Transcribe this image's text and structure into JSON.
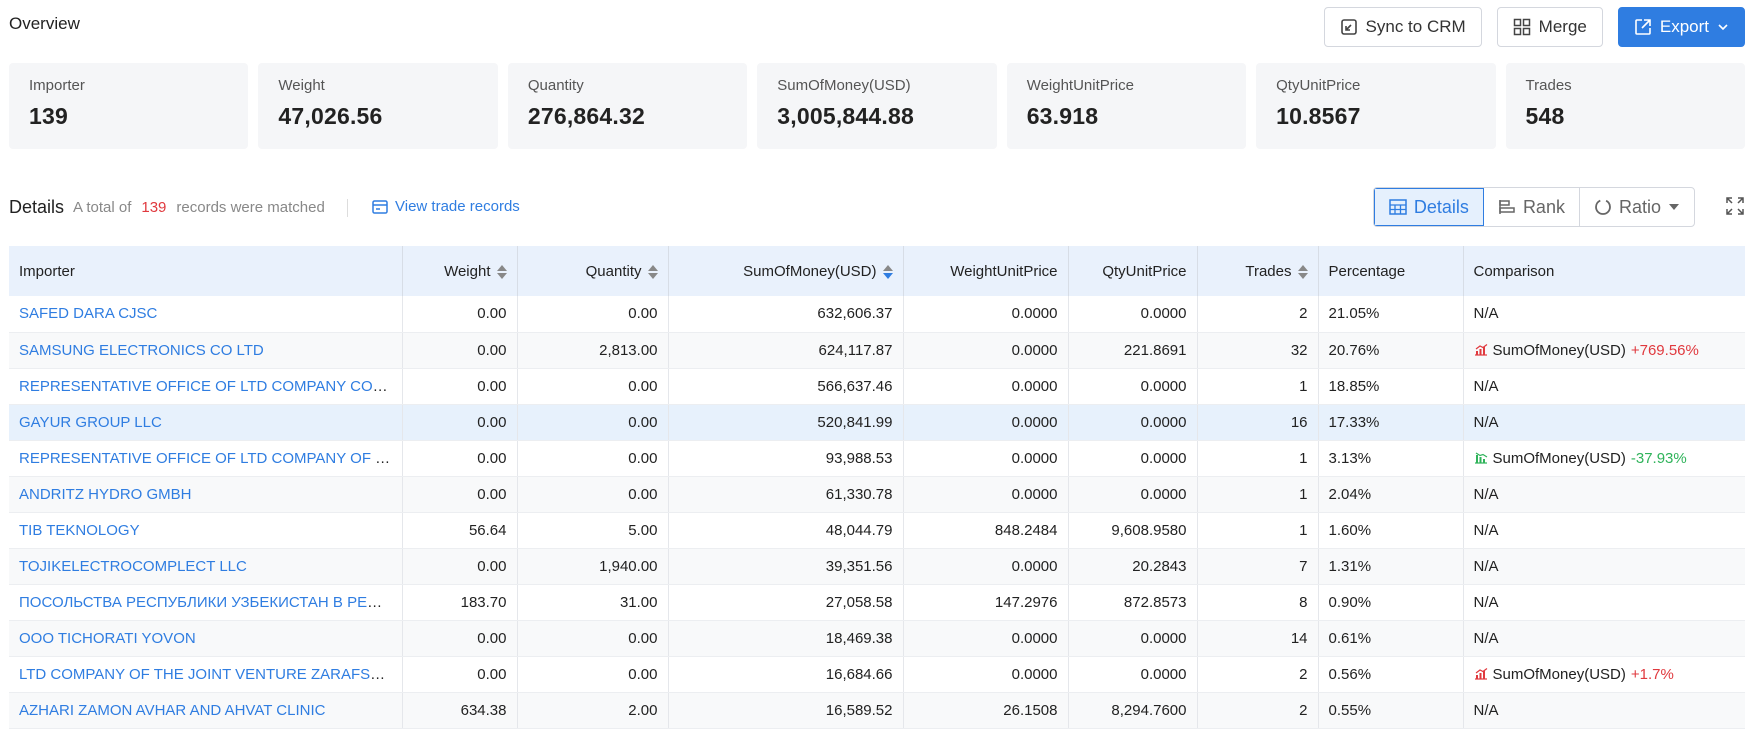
{
  "overview": {
    "title": "Overview",
    "actions": {
      "sync_label": "Sync to CRM",
      "merge_label": "Merge",
      "export_label": "Export"
    }
  },
  "stats": [
    {
      "label": "Importer",
      "value": "139"
    },
    {
      "label": "Weight",
      "value": "47,026.56"
    },
    {
      "label": "Quantity",
      "value": "276,864.32"
    },
    {
      "label": "SumOfMoney(USD)",
      "value": "3,005,844.88"
    },
    {
      "label": "WeightUnitPrice",
      "value": "63.918"
    },
    {
      "label": "QtyUnitPrice",
      "value": "10.8567"
    },
    {
      "label": "Trades",
      "value": "548"
    }
  ],
  "details": {
    "title": "Details",
    "summary_prefix": "A total of",
    "count": "139",
    "summary_suffix": "records were matched",
    "view_link": "View trade records",
    "views": {
      "details": "Details",
      "rank": "Rank",
      "ratio": "Ratio"
    }
  },
  "table": {
    "headers": {
      "importer": "Importer",
      "weight": "Weight",
      "quantity": "Quantity",
      "sum": "SumOfMoney(USD)",
      "wup": "WeightUnitPrice",
      "qup": "QtyUnitPrice",
      "trades": "Trades",
      "percentage": "Percentage",
      "comparison": "Comparison"
    },
    "rows": [
      {
        "importer": "SAFED DARA CJSC",
        "weight": "0.00",
        "quantity": "0.00",
        "sum": "632,606.37",
        "wup": "0.0000",
        "qup": "0.0000",
        "trades": "2",
        "percentage": "21.05%",
        "comparison": "N/A"
      },
      {
        "importer": "SAMSUNG ELECTRONICS CO LTD",
        "weight": "0.00",
        "quantity": "2,813.00",
        "sum": "624,117.87",
        "wup": "0.0000",
        "qup": "221.8691",
        "trades": "32",
        "percentage": "20.76%",
        "comparison": "SumOfMoney(USD)",
        "change": "+769.56%",
        "trend": "up"
      },
      {
        "importer": "REPRESENTATIVE OFFICE OF LTD COMPANY CORPORATION",
        "weight": "0.00",
        "quantity": "0.00",
        "sum": "566,637.46",
        "wup": "0.0000",
        "qup": "0.0000",
        "trades": "1",
        "percentage": "18.85%",
        "comparison": "N/A"
      },
      {
        "importer": "GAYUR GROUP LLC",
        "weight": "0.00",
        "quantity": "0.00",
        "sum": "520,841.99",
        "wup": "0.0000",
        "qup": "0.0000",
        "trades": "16",
        "percentage": "17.33%",
        "comparison": "N/A"
      },
      {
        "importer": "REPRESENTATIVE OFFICE OF LTD COMPANY OF JIANGSU",
        "weight": "0.00",
        "quantity": "0.00",
        "sum": "93,988.53",
        "wup": "0.0000",
        "qup": "0.0000",
        "trades": "1",
        "percentage": "3.13%",
        "comparison": "SumOfMoney(USD)",
        "change": "-37.93%",
        "trend": "down"
      },
      {
        "importer": "ANDRITZ HYDRO GMBH",
        "weight": "0.00",
        "quantity": "0.00",
        "sum": "61,330.78",
        "wup": "0.0000",
        "qup": "0.0000",
        "trades": "1",
        "percentage": "2.04%",
        "comparison": "N/A"
      },
      {
        "importer": "TIB TEKNOLOGY",
        "weight": "56.64",
        "quantity": "5.00",
        "sum": "48,044.79",
        "wup": "848.2484",
        "qup": "9,608.9580",
        "trades": "1",
        "percentage": "1.60%",
        "comparison": "N/A"
      },
      {
        "importer": "TOJIKELECTROCOMPLECT LLC",
        "weight": "0.00",
        "quantity": "1,940.00",
        "sum": "39,351.56",
        "wup": "0.0000",
        "qup": "20.2843",
        "trades": "7",
        "percentage": "1.31%",
        "comparison": "N/A"
      },
      {
        "importer": "ПОСОЛЬСТВА РЕСПУБЛИКИ УЗБЕКИСТАН В РЕСПУБЛИКЕ",
        "weight": "183.70",
        "quantity": "31.00",
        "sum": "27,058.58",
        "wup": "147.2976",
        "qup": "872.8573",
        "trades": "8",
        "percentage": "0.90%",
        "comparison": "N/A"
      },
      {
        "importer": "OOO TICHORATI YOVON",
        "weight": "0.00",
        "quantity": "0.00",
        "sum": "18,469.38",
        "wup": "0.0000",
        "qup": "0.0000",
        "trades": "14",
        "percentage": "0.61%",
        "comparison": "N/A"
      },
      {
        "importer": "LTD COMPANY OF THE JOINT VENTURE ZARAFSHON",
        "weight": "0.00",
        "quantity": "0.00",
        "sum": "16,684.66",
        "wup": "0.0000",
        "qup": "0.0000",
        "trades": "2",
        "percentage": "0.56%",
        "comparison": "SumOfMoney(USD)",
        "change": "+1.7%",
        "trend": "up"
      },
      {
        "importer": "AZHARI ZAMON AVHAR AND AHVAT CLINIC",
        "weight": "634.38",
        "quantity": "2.00",
        "sum": "16,589.52",
        "wup": "26.1508",
        "qup": "8,294.7600",
        "trades": "2",
        "percentage": "0.55%",
        "comparison": "N/A"
      }
    ],
    "highlight_row": 3
  },
  "colors": {
    "accent": "#2f7de1",
    "positive": "#e0393e",
    "negative": "#2fb35a"
  }
}
